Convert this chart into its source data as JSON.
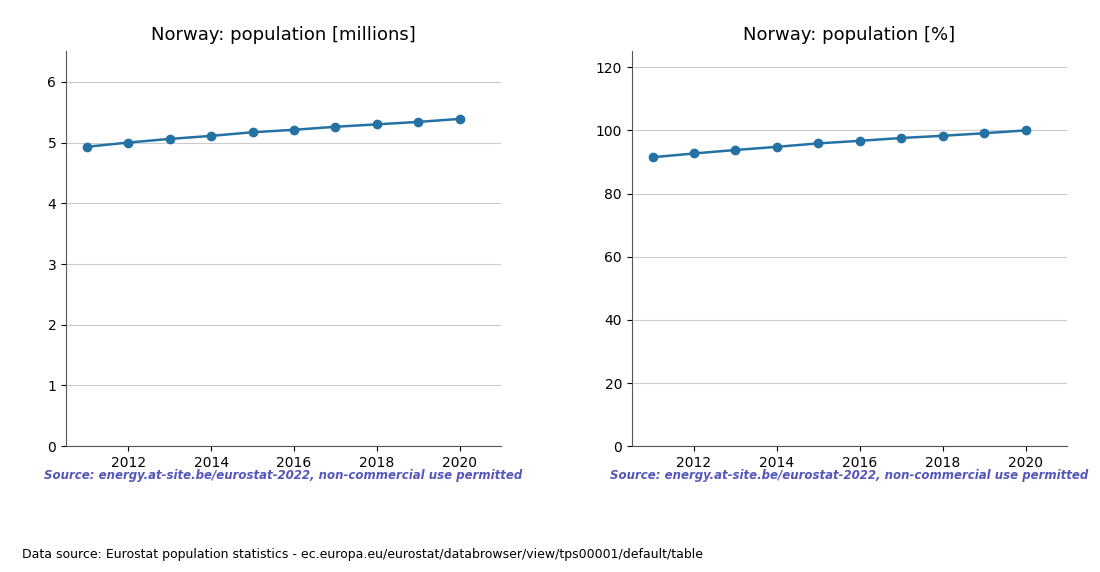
{
  "years": [
    2011,
    2012,
    2013,
    2014,
    2015,
    2016,
    2017,
    2018,
    2019,
    2020
  ],
  "pop_millions": [
    4.93,
    5.0,
    5.06,
    5.11,
    5.17,
    5.21,
    5.26,
    5.3,
    5.34,
    5.39
  ],
  "pop_percent": [
    91.5,
    92.7,
    93.8,
    94.8,
    95.9,
    96.7,
    97.6,
    98.3,
    99.1,
    100.0
  ],
  "title_left": "Norway: population [millions]",
  "title_right": "Norway: population [%]",
  "ylim_left": [
    0,
    6.5
  ],
  "ylim_right": [
    0,
    125
  ],
  "yticks_left": [
    0,
    1,
    2,
    3,
    4,
    5,
    6
  ],
  "yticks_right": [
    0,
    20,
    40,
    60,
    80,
    100,
    120
  ],
  "xticks": [
    2012,
    2014,
    2016,
    2018,
    2020
  ],
  "xlim": [
    2010.5,
    2021.0
  ],
  "line_color": "#2472a4",
  "marker": "o",
  "markersize": 6,
  "linewidth": 1.8,
  "source_text": "Source: energy.at-site.be/eurostat-2022, non-commercial use permitted",
  "source_color": "#5555bb",
  "footer_text": "Data source: Eurostat population statistics - ec.europa.eu/eurostat/databrowser/view/tps00001/default/table",
  "footer_color": "#000000",
  "grid_color": "#cccccc",
  "background_color": "#ffffff"
}
